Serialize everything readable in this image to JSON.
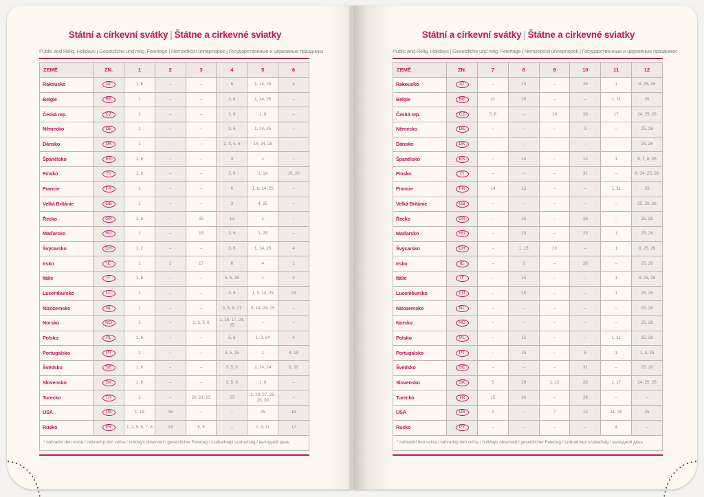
{
  "title_cz": "Státní a církevní svátky",
  "title_sk": "Štátne a cirkevné sviatky",
  "title_sep": "|",
  "subtitle": "Public and Relig. Holidays | Gesetzliche und relig. Feiertage | Nemzetközi ünnepnapok | Государственные и церковные праздники",
  "col_country": "ZEMĚ",
  "col_code": "ZN.",
  "footnote": "* náhradní den volna / náhradný deň voľna / holidays observed / gesetzlicher Feiertag / szabadnapi szabadság / выходной день",
  "colors": {
    "accent": "#c4155a",
    "page": "#fdf9f0",
    "shade": "#f1ebe6"
  },
  "countries": [
    {
      "name": "Rakousko",
      "code": "AT"
    },
    {
      "name": "Belgie",
      "code": "BE"
    },
    {
      "name": "Česká rep.",
      "code": "CZ"
    },
    {
      "name": "Německo",
      "code": "DE"
    },
    {
      "name": "Dánsko",
      "code": "DK"
    },
    {
      "name": "Španělsko",
      "code": "ES"
    },
    {
      "name": "Finsko",
      "code": "FI"
    },
    {
      "name": "Francie",
      "code": "FR"
    },
    {
      "name": "Velká Británie",
      "code": "GB"
    },
    {
      "name": "Řecko",
      "code": "GR"
    },
    {
      "name": "Maďarsko",
      "code": "HU"
    },
    {
      "name": "Švýcarsko",
      "code": "CH"
    },
    {
      "name": "Irsko",
      "code": "IE"
    },
    {
      "name": "Itálie",
      "code": "IT"
    },
    {
      "name": "Lucembursko",
      "code": "LU"
    },
    {
      "name": "Nizozemsko",
      "code": "NL"
    },
    {
      "name": "Norsko",
      "code": "NO"
    },
    {
      "name": "Polsko",
      "code": "PL"
    },
    {
      "name": "Portugalsko",
      "code": "PT"
    },
    {
      "name": "Švédsko",
      "code": "SE"
    },
    {
      "name": "Slovensko",
      "code": "SK"
    },
    {
      "name": "Turecko",
      "code": "TR"
    },
    {
      "name": "USA",
      "code": "US"
    },
    {
      "name": "Rusko",
      "code": "PY"
    }
  ],
  "pages": [
    {
      "months": [
        "1",
        "2",
        "3",
        "4",
        "5",
        "6"
      ],
      "values": [
        [
          "1, 6",
          "–",
          "–",
          "6",
          "1, 14, 25",
          "4"
        ],
        [
          "1",
          "–",
          "–",
          "3, 6",
          "1, 14, 25",
          "–"
        ],
        [
          "1",
          "–",
          "–",
          "3, 6",
          "1, 8",
          "–"
        ],
        [
          "1",
          "–",
          "–",
          "3, 6",
          "1, 14, 25",
          "–"
        ],
        [
          "1",
          "–",
          "–",
          "2, 3, 5, 6",
          "14, 24, 25",
          "–"
        ],
        [
          "1, 6",
          "–",
          "–",
          "3",
          "1",
          "–"
        ],
        [
          "1, 6",
          "–",
          "–",
          "3, 6",
          "1, 14",
          "19, 20"
        ],
        [
          "1",
          "–",
          "–",
          "6",
          "1, 8, 14, 25",
          "–"
        ],
        [
          "1",
          "–",
          "–",
          "3",
          "4, 25",
          "–"
        ],
        [
          "1, 6",
          "–",
          "25",
          "13",
          "1",
          "–"
        ],
        [
          "1",
          "–",
          "15",
          "3, 6",
          "1, 25",
          "–"
        ],
        [
          "1, 2",
          "–",
          "–",
          "3, 6",
          "1, 14, 25",
          "4"
        ],
        [
          "1",
          "2",
          "17",
          "6",
          "4",
          "1"
        ],
        [
          "1, 6",
          "–",
          "–",
          "5, 6, 25",
          "1",
          "2"
        ],
        [
          "1",
          "–",
          "–",
          "3, 6",
          "1, 9, 14, 25",
          "23"
        ],
        [
          "1",
          "–",
          "–",
          "3, 5, 6, 27",
          "5, 14, 24, 25",
          "–"
        ],
        [
          "1",
          "–",
          "2, 3, 5, 6",
          "1, 14, 17, 24, 25",
          "–",
          "–"
        ],
        [
          "1, 6",
          "–",
          "–",
          "5, 6",
          "1, 3, 24",
          "4"
        ],
        [
          "1",
          "–",
          "–",
          "3, 5, 25",
          "1",
          "4, 10"
        ],
        [
          "1, 6",
          "–",
          "–",
          "3, 5, 6",
          "1, 14, 24",
          "6, 20"
        ],
        [
          "1, 6",
          "–",
          "–",
          "3, 5, 6",
          "1, 8",
          "–"
        ],
        [
          "1",
          "–",
          "20, 21, 22",
          "23",
          "1, 19, 27, 28, 29, 30",
          "–"
        ],
        [
          "1, 19",
          "16",
          "–",
          "–",
          "25",
          "19"
        ],
        [
          "1, 2, 5, 6, 7, 8",
          "23",
          "8, 9",
          "–",
          "1, 9, 11",
          "12"
        ]
      ]
    },
    {
      "months": [
        "7",
        "8",
        "9",
        "10",
        "11",
        "12"
      ],
      "values": [
        [
          "–",
          "15",
          "–",
          "26",
          "1",
          "8, 25, 26"
        ],
        [
          "21",
          "15",
          "–",
          "–",
          "1, 11",
          "25"
        ],
        [
          "5, 6",
          "–",
          "28",
          "28",
          "17",
          "24, 25, 26"
        ],
        [
          "–",
          "–",
          "–",
          "3",
          "–",
          "25, 26"
        ],
        [
          "–",
          "–",
          "–",
          "–",
          "–",
          "25, 26"
        ],
        [
          "–",
          "15",
          "–",
          "12",
          "1",
          "6, 7, 8, 25"
        ],
        [
          "–",
          "–",
          "–",
          "31",
          "–",
          "6, 24, 25, 26"
        ],
        [
          "14",
          "15",
          "–",
          "–",
          "1, 11",
          "25"
        ],
        [
          "–",
          "–",
          "–",
          "–",
          "–",
          "25, 26, 28"
        ],
        [
          "–",
          "15",
          "–",
          "28",
          "–",
          "25, 26"
        ],
        [
          "–",
          "20",
          "–",
          "23",
          "1",
          "25, 26"
        ],
        [
          "–",
          "1, 15",
          "20",
          "–",
          "1",
          "8, 25, 26"
        ],
        [
          "–",
          "3",
          "–",
          "26",
          "–",
          "25, 26"
        ],
        [
          "–",
          "15",
          "–",
          "–",
          "1",
          "8, 25, 26"
        ],
        [
          "–",
          "15",
          "–",
          "–",
          "1",
          "25, 26"
        ],
        [
          "–",
          "–",
          "–",
          "–",
          "–",
          "25, 26"
        ],
        [
          "–",
          "–",
          "–",
          "–",
          "–",
          "25, 26"
        ],
        [
          "–",
          "15",
          "–",
          "–",
          "1, 11",
          "25, 26"
        ],
        [
          "–",
          "15",
          "–",
          "5",
          "1",
          "1, 8, 25"
        ],
        [
          "–",
          "–",
          "–",
          "31",
          "–",
          "25, 26"
        ],
        [
          "5",
          "29",
          "1, 15",
          "28",
          "1, 17",
          "24, 25, 26"
        ],
        [
          "15",
          "30",
          "–",
          "29",
          "–",
          "–"
        ],
        [
          "3",
          "–",
          "7",
          "12",
          "11, 26",
          "25"
        ],
        [
          "–",
          "–",
          "–",
          "–",
          "4",
          "–"
        ]
      ]
    }
  ]
}
